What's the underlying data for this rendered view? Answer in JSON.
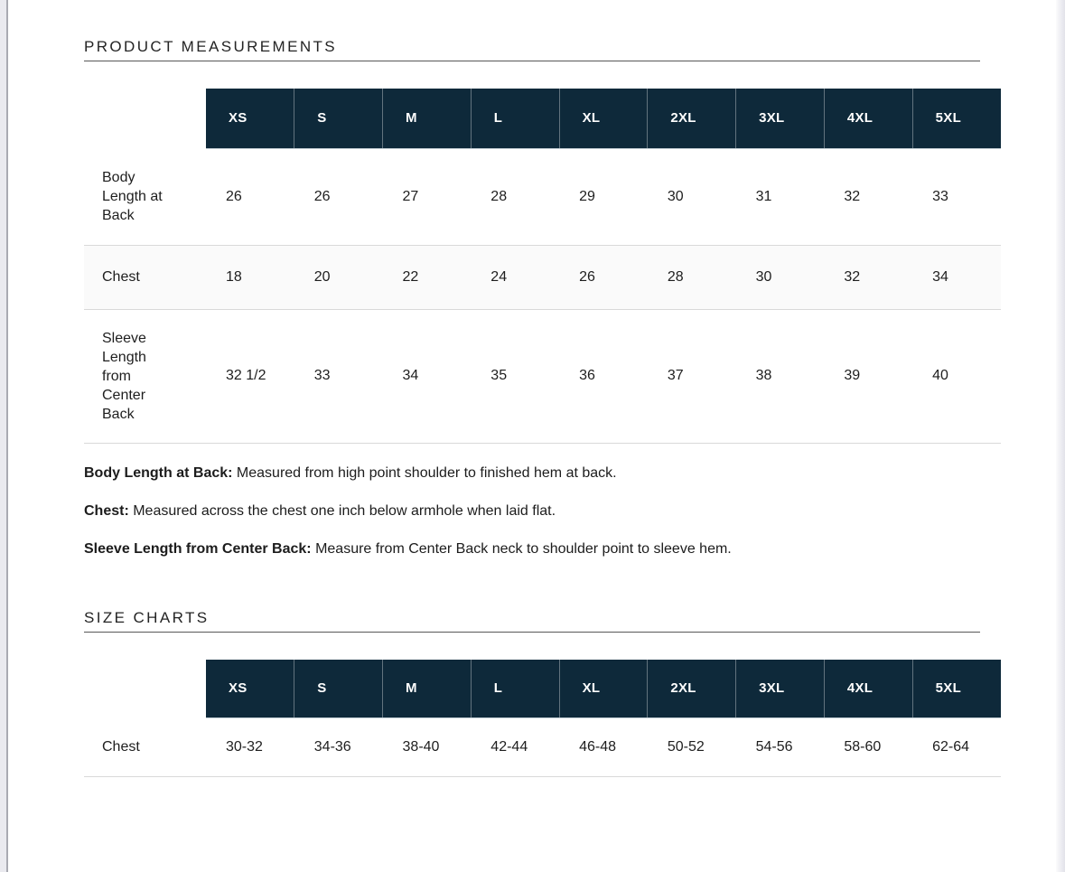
{
  "product_measurements": {
    "title": "PRODUCT MEASUREMENTS",
    "sizes": [
      "XS",
      "S",
      "M",
      "L",
      "XL",
      "2XL",
      "3XL",
      "4XL",
      "5XL"
    ],
    "rows": [
      {
        "label": "Body Length at Back",
        "values": [
          "26",
          "26",
          "27",
          "28",
          "29",
          "30",
          "31",
          "32",
          "33"
        ]
      },
      {
        "label": "Chest",
        "values": [
          "18",
          "20",
          "22",
          "24",
          "26",
          "28",
          "30",
          "32",
          "34"
        ]
      },
      {
        "label": "Sleeve Length from Center Back",
        "values": [
          "32 1/2",
          "33",
          "34",
          "35",
          "36",
          "37",
          "38",
          "39",
          "40"
        ]
      }
    ],
    "definitions": [
      {
        "term": "Body Length at Back:",
        "text": " Measured from high point shoulder to finished hem at back."
      },
      {
        "term": "Chest:",
        "text": " Measured across the chest one inch below armhole when laid flat."
      },
      {
        "term": "Sleeve Length from Center Back:",
        "text": " Measure from Center Back neck to shoulder point to sleeve hem."
      }
    ]
  },
  "size_charts": {
    "title": "SIZE CHARTS",
    "sizes": [
      "XS",
      "S",
      "M",
      "L",
      "XL",
      "2XL",
      "3XL",
      "4XL",
      "5XL"
    ],
    "rows": [
      {
        "label": "Chest",
        "values": [
          "30-32",
          "34-36",
          "38-40",
          "42-44",
          "46-48",
          "50-52",
          "54-56",
          "58-60",
          "62-64"
        ]
      }
    ]
  },
  "colors": {
    "header_bg": "#0e293a",
    "header_text": "#ffffff",
    "alt_row_bg": "#fafafa",
    "row_border": "#d9d9d9",
    "heading_underline": "#585858",
    "body_text": "#1e1e1e"
  }
}
